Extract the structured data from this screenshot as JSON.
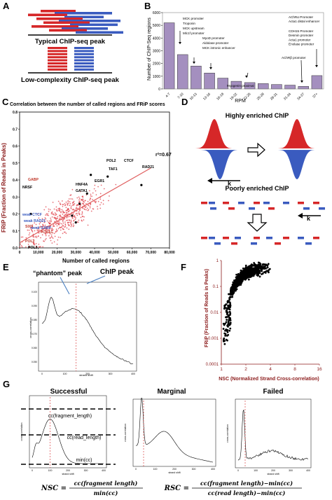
{
  "panel_letters": [
    "A",
    "B",
    "C",
    "D",
    "E",
    "F",
    "G"
  ],
  "panelA": {
    "typical_label": "Typical ChIP-seq peak",
    "lowcomplexity_label": "Low-complexity ChIP-seq peak",
    "colors": {
      "forward": "#d62728",
      "reverse": "#3a5bbf"
    }
  },
  "panelB": {
    "ylabel": "Number of ChIP-Seq regions",
    "xlabel": "RPM",
    "annotations": [
      "MCK promoter\nTroponin\nMCK upstream\nMlc1f promoter",
      "MyoD promoter\nAldolase promoter\nMCK intronic enhancer",
      "Myogenin proximal",
      "AChRβ promoter",
      "AChRα Promoter\nActa1 distal enhancer",
      "CDH15 Promoter\nDesmin promoter\nActa1 promoter\nEnolase promoter"
    ]
  },
  "panelC": {
    "title": "Correlation between the number of called regions and FRiP scores",
    "ylabel": "FRiP (Fraction of Reads in Peaks)",
    "xlabel": "Number of called regions",
    "r2": "r²=0.67",
    "labels_black": [
      "RAD21",
      "POL2",
      "CTCF",
      "TAF1",
      "EGR1",
      "HNF4A",
      "GATA1",
      "NRSF",
      "POL3"
    ],
    "labels_red": [
      "GABP",
      "SIX5",
      "FOXA1",
      "POL2"
    ],
    "labels_blue": [
      "weak CTCF",
      "weak RAD21",
      "weak GABP"
    ],
    "colors": {
      "point": "#e0404a",
      "fit": "#e06060"
    }
  },
  "panelD": {
    "high_label": "Highly enriched ChIP",
    "poor_label": "Poorly enriched ChIP",
    "k_label": "k"
  },
  "panelE": {
    "phantom_label": "“phantom” peak",
    "chip_label": "ChIP peak",
    "ylabel": "cross-correlation",
    "xlabel": "strand shift"
  },
  "panelF": {
    "ylabel": "FRiP (Fraction of Reads in Peaks)",
    "xlabel": "NSC (Normalized Strand Cross-correlation)",
    "color": "#8b1a1a"
  },
  "panelG": {
    "titles": [
      "Successful",
      "Marginal",
      "Failed"
    ],
    "cc_frag": "cc(fragment_length)",
    "cc_read": "cc(read_length)",
    "min_cc": "min(cc)",
    "ylabel": "cross-correlation",
    "xlabel": "strand shift",
    "nsc_formula_lhs": "NSC =",
    "nsc_num": "cc(fragment length)",
    "nsc_den": "min(cc)",
    "rsc_formula_lhs": "RSC =",
    "rsc_num": "cc(fragment length)−min(cc)",
    "rsc_den": "cc(read length)−min(cc)"
  },
  "chart_data": [
    {
      "type": "bar",
      "panel": "B",
      "ylabel": "Number of ChIP-Seq regions",
      "xlabel": "RPM",
      "categories": [
        "4-7",
        "7-10",
        "10-13",
        "13-16",
        "16-19",
        "19-22",
        "22-25",
        "25-28",
        "28-31",
        "31-34",
        "34-37",
        "37+"
      ],
      "values": [
        5200,
        2700,
        1800,
        1250,
        850,
        600,
        500,
        420,
        350,
        300,
        200,
        1050
      ],
      "ylim": [
        0,
        6000
      ],
      "yticks": [
        0,
        1000,
        2000,
        3000,
        4000,
        5000,
        6000
      ]
    },
    {
      "type": "scatter",
      "panel": "C",
      "xlabel": "Number of called regions",
      "ylabel": "FRiP (Fraction of Reads in Peaks)",
      "xlim": [
        0,
        80000
      ],
      "ylim": [
        0,
        0.8
      ],
      "xticks": [
        0,
        10000,
        20000,
        30000,
        40000,
        50000,
        60000,
        70000,
        80000
      ],
      "yticks": [
        0,
        0.1,
        0.2,
        0.3,
        0.4,
        0.5,
        0.6,
        0.7,
        0.8
      ],
      "r2": 0.67,
      "highlighted": [
        {
          "label": "RAD21",
          "x": 65000,
          "y": 0.37
        },
        {
          "label": "POL2",
          "x": 38000,
          "y": 0.43
        },
        {
          "label": "CTCF",
          "x": 47000,
          "y": 0.42
        },
        {
          "label": "TAF1",
          "x": 36000,
          "y": 0.32
        },
        {
          "label": "EGR1",
          "x": 32000,
          "y": 0.26
        },
        {
          "label": "HNF4A",
          "x": 28000,
          "y": 0.19
        },
        {
          "label": "GATA1",
          "x": 30000,
          "y": 0.15
        },
        {
          "label": "NRSF",
          "x": 6000,
          "y": 0.2
        }
      ]
    },
    {
      "type": "scatter",
      "panel": "F",
      "xlabel": "NSC (Normalized Strand Cross-correlation)",
      "ylabel": "FRiP (Fraction of Reads in Peaks)",
      "xlim": [
        1,
        16
      ],
      "ylim": [
        0.0001,
        1
      ],
      "xscale": "log2",
      "yscale": "log",
      "xticks": [
        1,
        2,
        4,
        8,
        16
      ],
      "yticks": [
        0.0001,
        0.001,
        0.01,
        0.1,
        1
      ]
    }
  ]
}
